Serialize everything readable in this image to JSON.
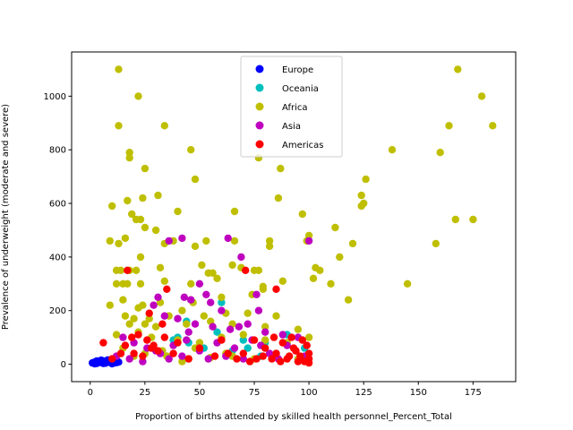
{
  "chart_data": {
    "type": "scatter",
    "title": "",
    "xlabel": "Proportion of births attended by skilled health personnel_Percent_Total",
    "ylabel": "Prevalence of underweight (moderate and severe)",
    "xlim": [
      -8.5,
      194.5
    ],
    "ylim": [
      -65,
      1165
    ],
    "x_ticks": [
      0,
      25,
      50,
      75,
      100,
      125,
      150,
      175
    ],
    "y_ticks": [
      0,
      200,
      400,
      600,
      800,
      1000
    ],
    "grid": false,
    "legend_position": "upper-center",
    "series": [
      {
        "name": "Europe",
        "color": "#0000ff",
        "points": [
          [
            1,
            5
          ],
          [
            2,
            8
          ],
          [
            3,
            3
          ],
          [
            4,
            10
          ],
          [
            5,
            6
          ],
          [
            6,
            12
          ],
          [
            7,
            4
          ],
          [
            8,
            9
          ],
          [
            9,
            7
          ],
          [
            10,
            11
          ],
          [
            11,
            5
          ],
          [
            12,
            14
          ],
          [
            13,
            8
          ],
          [
            3,
            12
          ],
          [
            5,
            15
          ],
          [
            2,
            2
          ],
          [
            6,
            3
          ],
          [
            8,
            16
          ],
          [
            10,
            2
          ],
          [
            12,
            6
          ]
        ]
      },
      {
        "name": "Oceania",
        "color": "#00bfbf",
        "points": [
          [
            40,
            100
          ],
          [
            45,
            80
          ],
          [
            52,
            60
          ],
          [
            58,
            120
          ],
          [
            65,
            50
          ],
          [
            70,
            90
          ],
          [
            72,
            60
          ],
          [
            78,
            30
          ],
          [
            80,
            80
          ],
          [
            85,
            40
          ],
          [
            90,
            110
          ],
          [
            95,
            20
          ],
          [
            98,
            60
          ],
          [
            60,
            230
          ],
          [
            44,
            160
          ],
          [
            38,
            90
          ]
        ]
      },
      {
        "name": "Africa",
        "color": "#bfbf00",
        "points": [
          [
            13,
            1100
          ],
          [
            22,
            1000
          ],
          [
            13,
            890
          ],
          [
            34,
            890
          ],
          [
            18,
            790
          ],
          [
            46,
            800
          ],
          [
            18,
            770
          ],
          [
            25,
            730
          ],
          [
            48,
            690
          ],
          [
            10,
            590
          ],
          [
            17,
            610
          ],
          [
            24,
            620
          ],
          [
            31,
            630
          ],
          [
            19,
            560
          ],
          [
            21,
            540
          ],
          [
            23,
            540
          ],
          [
            25,
            510
          ],
          [
            40,
            570
          ],
          [
            66,
            570
          ],
          [
            9,
            460
          ],
          [
            13,
            450
          ],
          [
            16,
            470
          ],
          [
            34,
            450
          ],
          [
            38,
            460
          ],
          [
            53,
            460
          ],
          [
            48,
            440
          ],
          [
            23,
            400
          ],
          [
            30,
            500
          ],
          [
            12,
            350
          ],
          [
            14,
            350
          ],
          [
            18,
            350
          ],
          [
            21,
            350
          ],
          [
            32,
            360
          ],
          [
            51,
            370
          ],
          [
            54,
            340
          ],
          [
            56,
            340
          ],
          [
            75,
            350
          ],
          [
            12,
            300
          ],
          [
            15,
            300
          ],
          [
            17,
            300
          ],
          [
            23,
            300
          ],
          [
            34,
            310
          ],
          [
            46,
            300
          ],
          [
            58,
            320
          ],
          [
            65,
            370
          ],
          [
            69,
            360
          ],
          [
            79,
            290
          ],
          [
            9,
            220
          ],
          [
            15,
            240
          ],
          [
            22,
            210
          ],
          [
            24,
            220
          ],
          [
            32,
            230
          ],
          [
            42,
            200
          ],
          [
            47,
            230
          ],
          [
            60,
            250
          ],
          [
            74,
            260
          ],
          [
            16,
            180
          ],
          [
            20,
            170
          ],
          [
            27,
            170
          ],
          [
            36,
            180
          ],
          [
            52,
            180
          ],
          [
            62,
            190
          ],
          [
            72,
            190
          ],
          [
            85,
            180
          ],
          [
            18,
            150
          ],
          [
            25,
            150
          ],
          [
            30,
            140
          ],
          [
            44,
            150
          ],
          [
            55,
            160
          ],
          [
            65,
            150
          ],
          [
            80,
            140
          ],
          [
            95,
            130
          ],
          [
            12,
            110
          ],
          [
            22,
            120
          ],
          [
            28,
            100
          ],
          [
            40,
            90
          ],
          [
            50,
            80
          ],
          [
            60,
            100
          ],
          [
            70,
            110
          ],
          [
            80,
            90
          ],
          [
            90,
            80
          ],
          [
            100,
            100
          ],
          [
            15,
            60
          ],
          [
            25,
            40
          ],
          [
            35,
            30
          ],
          [
            45,
            20
          ],
          [
            55,
            25
          ],
          [
            62,
            40
          ],
          [
            75,
            20
          ],
          [
            85,
            30
          ],
          [
            95,
            20
          ],
          [
            42,
            10
          ],
          [
            65,
            30
          ],
          [
            48,
            60
          ],
          [
            33,
            50
          ],
          [
            20,
            30
          ],
          [
            87,
            730
          ],
          [
            77,
            770
          ],
          [
            86,
            620
          ],
          [
            82,
            460
          ],
          [
            82,
            440
          ],
          [
            77,
            350
          ],
          [
            79,
            280
          ],
          [
            88,
            310
          ],
          [
            66,
            460
          ],
          [
            97,
            560
          ],
          [
            99,
            460
          ],
          [
            103,
            360
          ],
          [
            100,
            480
          ],
          [
            102,
            320
          ],
          [
            105,
            350
          ],
          [
            110,
            300
          ],
          [
            112,
            510
          ],
          [
            114,
            400
          ],
          [
            120,
            450
          ],
          [
            118,
            240
          ],
          [
            124,
            630
          ],
          [
            126,
            690
          ],
          [
            125,
            600
          ],
          [
            124,
            590
          ],
          [
            138,
            800
          ],
          [
            145,
            300
          ],
          [
            158,
            450
          ],
          [
            160,
            790
          ],
          [
            164,
            890
          ],
          [
            167,
            540
          ],
          [
            168,
            1100
          ],
          [
            175,
            540
          ],
          [
            179,
            1000
          ],
          [
            184,
            890
          ]
        ]
      },
      {
        "name": "Asia",
        "color": "#bf00bf",
        "points": [
          [
            36,
            460
          ],
          [
            42,
            470
          ],
          [
            63,
            470
          ],
          [
            69,
            400
          ],
          [
            100,
            460
          ],
          [
            76,
            260
          ],
          [
            53,
            260
          ],
          [
            31,
            250
          ],
          [
            43,
            250
          ],
          [
            46,
            240
          ],
          [
            55,
            230
          ],
          [
            60,
            200
          ],
          [
            29,
            220
          ],
          [
            34,
            180
          ],
          [
            40,
            170
          ],
          [
            48,
            150
          ],
          [
            56,
            140
          ],
          [
            64,
            130
          ],
          [
            72,
            150
          ],
          [
            80,
            120
          ],
          [
            88,
            110
          ],
          [
            95,
            100
          ],
          [
            15,
            100
          ],
          [
            20,
            80
          ],
          [
            26,
            60
          ],
          [
            32,
            40
          ],
          [
            38,
            70
          ],
          [
            44,
            90
          ],
          [
            50,
            50
          ],
          [
            58,
            80
          ],
          [
            66,
            60
          ],
          [
            74,
            90
          ],
          [
            82,
            40
          ],
          [
            90,
            70
          ],
          [
            98,
            30
          ],
          [
            12,
            30
          ],
          [
            18,
            20
          ],
          [
            24,
            10
          ],
          [
            30,
            50
          ],
          [
            36,
            20
          ],
          [
            42,
            30
          ],
          [
            54,
            20
          ],
          [
            62,
            30
          ],
          [
            70,
            20
          ],
          [
            78,
            70
          ],
          [
            86,
            20
          ],
          [
            94,
            50
          ],
          [
            50,
            300
          ],
          [
            45,
            120
          ],
          [
            68,
            140
          ],
          [
            77,
            200
          ]
        ]
      },
      {
        "name": "Americas",
        "color": "#ff0000",
        "points": [
          [
            17,
            350
          ],
          [
            71,
            350
          ],
          [
            85,
            280
          ],
          [
            35,
            280
          ],
          [
            27,
            190
          ],
          [
            33,
            150
          ],
          [
            19,
            100
          ],
          [
            22,
            110
          ],
          [
            26,
            90
          ],
          [
            29,
            70
          ],
          [
            31,
            50
          ],
          [
            24,
            30
          ],
          [
            16,
            70
          ],
          [
            10,
            20
          ],
          [
            14,
            40
          ],
          [
            6,
            80
          ],
          [
            20,
            40
          ],
          [
            28,
            60
          ],
          [
            34,
            100
          ],
          [
            40,
            80
          ],
          [
            50,
            60
          ],
          [
            60,
            90
          ],
          [
            70,
            40
          ],
          [
            75,
            90
          ],
          [
            80,
            60
          ],
          [
            85,
            40
          ],
          [
            88,
            80
          ],
          [
            90,
            20
          ],
          [
            92,
            100
          ],
          [
            94,
            50
          ],
          [
            96,
            30
          ],
          [
            98,
            10
          ],
          [
            99,
            70
          ],
          [
            100,
            20
          ],
          [
            100,
            5
          ],
          [
            100,
            40
          ],
          [
            97,
            90
          ],
          [
            95,
            10
          ],
          [
            93,
            60
          ],
          [
            91,
            30
          ],
          [
            87,
            10
          ],
          [
            83,
            20
          ],
          [
            79,
            30
          ],
          [
            73,
            10
          ],
          [
            67,
            20
          ],
          [
            63,
            40
          ],
          [
            57,
            30
          ],
          [
            45,
            20
          ],
          [
            38,
            40
          ],
          [
            84,
            100
          ],
          [
            76,
            20
          ]
        ]
      }
    ]
  }
}
